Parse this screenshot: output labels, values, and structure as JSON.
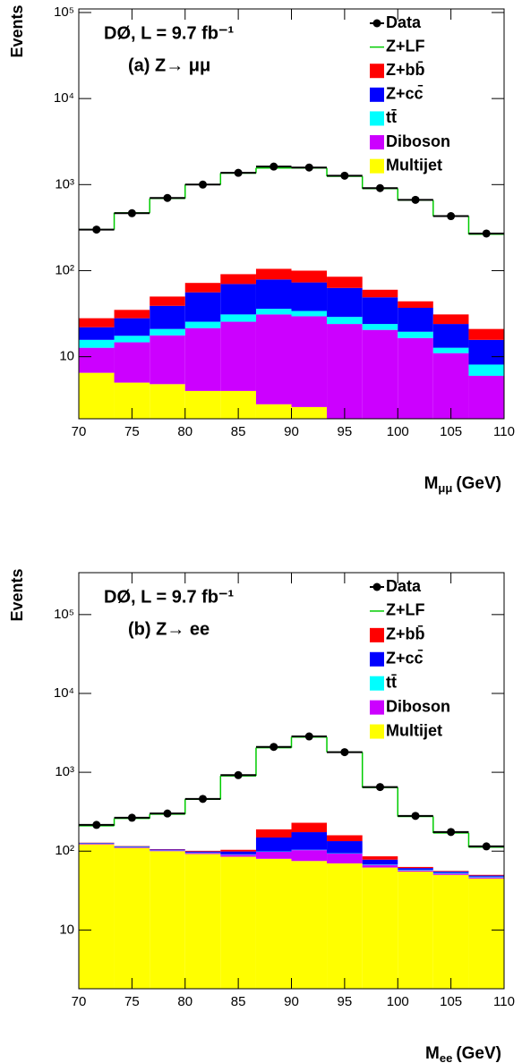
{
  "chart_data": [
    {
      "type": "histogram",
      "title": "DØ, L = 9.7 fb⁻¹",
      "subtitle": "(a) Z→ μμ",
      "xlabel": "M",
      "xlabel_sub": "μμ",
      "xlabel_unit": "(GeV)",
      "ylabel": "Events",
      "bins": [
        70,
        73.33,
        76.67,
        80,
        83.33,
        86.67,
        90,
        93.33,
        96.67,
        100,
        103.33,
        106.67,
        110
      ],
      "xlim": [
        70,
        110
      ],
      "xticks": [
        70,
        75,
        80,
        85,
        90,
        95,
        100,
        105,
        110
      ],
      "ylim": [
        1.9,
        110000
      ],
      "log_y": true,
      "yticks": [
        10,
        {
          "value": 100,
          "label": "10²"
        },
        {
          "value": 1000,
          "label": "10³"
        },
        {
          "value": 10000,
          "label": "10⁴"
        },
        {
          "value": 100000,
          "label": "10⁵"
        }
      ],
      "series": [
        {
          "name": "Data",
          "color": "#000000",
          "draw": "points",
          "values": [
            300,
            465,
            700,
            1000,
            1370,
            1620,
            1580,
            1270,
            910,
            665,
            430,
            270
          ]
        },
        {
          "name": "Z+LF",
          "color": "#00cc00",
          "draw": "line",
          "values": [
            272,
            435,
            640,
            928,
            1269,
            1455,
            1460,
            1165,
            840,
            616,
            399,
            244
          ]
        },
        {
          "name": "Z+bb̄",
          "color": "#ff0000",
          "draw": "fill",
          "values": [
            6,
            7,
            11,
            16,
            21,
            26,
            27,
            22,
            11,
            7,
            7,
            5.3
          ]
        },
        {
          "name": "Z+cc̄",
          "color": "#0000ff",
          "draw": "fill",
          "values": [
            6.3,
            10.5,
            18,
            30.5,
            39,
            43,
            39,
            34,
            25,
            17.5,
            11.3,
            7.6
          ]
        },
        {
          "name": "tt̄",
          "color": "#00ffff",
          "draw": "fill",
          "values": [
            3.0,
            2.8,
            3.3,
            4.0,
            5.5,
            5.0,
            4.5,
            5.0,
            3.5,
            3.0,
            1.7,
            2.1
          ]
        },
        {
          "name": "Diboson",
          "color": "#cc00ff",
          "draw": "fill",
          "values": [
            6.2,
            9.7,
            12.9,
            17.5,
            21.5,
            28.2,
            26.9,
            22.3,
            19.0,
            15.1,
            9.7,
            4.8
          ]
        },
        {
          "name": "Multijet",
          "color": "#ffff00",
          "draw": "fill",
          "values": [
            6.5,
            5.0,
            4.8,
            4.0,
            4.0,
            2.8,
            2.6,
            1.7,
            1.5,
            1.4,
            1.3,
            1.2
          ]
        }
      ]
    },
    {
      "type": "histogram",
      "title": "DØ, L = 9.7 fb⁻¹",
      "subtitle": "(b)  Z→ ee",
      "xlabel": "M",
      "xlabel_sub": "ee",
      "xlabel_unit": "(GeV)",
      "ylabel": "Events",
      "bins": [
        70,
        73.33,
        76.67,
        80,
        83.33,
        86.67,
        90,
        93.33,
        96.67,
        100,
        103.33,
        106.67,
        110
      ],
      "xlim": [
        70,
        110
      ],
      "xticks": [
        70,
        75,
        80,
        85,
        90,
        95,
        100,
        105,
        110
      ],
      "ylim": [
        1.8,
        340000
      ],
      "log_y": true,
      "yticks": [
        10,
        {
          "value": 100,
          "label": "10²"
        },
        {
          "value": 1000,
          "label": "10³"
        },
        {
          "value": 10000,
          "label": "10⁴"
        },
        {
          "value": 100000,
          "label": "10⁵"
        }
      ],
      "series": [
        {
          "name": "Data",
          "color": "#000000",
          "draw": "points",
          "values": [
            215,
            265,
            300,
            460,
            920,
            2100,
            2850,
            1800,
            650,
            280,
            175,
            115
          ]
        },
        {
          "name": "Z+LF",
          "color": "#00cc00",
          "draw": "line",
          "values": [
            82,
            144,
            189,
            354,
            796,
            1861,
            2571,
            1641,
            554,
            212,
            114,
            62.5
          ]
        },
        {
          "name": "Z+bb̄",
          "color": "#ff0000",
          "draw": "fill",
          "values": [
            1,
            1,
            1,
            2,
            5,
            40,
            55,
            25,
            8,
            2,
            1,
            1
          ]
        },
        {
          "name": "Z+cc̄",
          "color": "#0000ff",
          "draw": "fill",
          "values": [
            2,
            2,
            2,
            3,
            8,
            50,
            70,
            40,
            10,
            3,
            2,
            1.5
          ]
        },
        {
          "name": "tt̄",
          "color": "#00ffff",
          "draw": "fill",
          "values": [
            1,
            1,
            1,
            1,
            1,
            1,
            1,
            1,
            1,
            1,
            1,
            1
          ]
        },
        {
          "name": "Diboson",
          "color": "#cc00ff",
          "draw": "fill",
          "values": [
            2,
            2,
            2,
            3,
            5,
            18,
            28,
            23,
            5,
            2,
            2,
            1.5
          ]
        },
        {
          "name": "Multijet",
          "color": "#ffff00",
          "draw": "fill",
          "values": [
            122,
            110,
            100,
            92,
            85,
            80,
            75,
            70,
            62,
            55,
            50,
            45
          ]
        }
      ]
    }
  ]
}
